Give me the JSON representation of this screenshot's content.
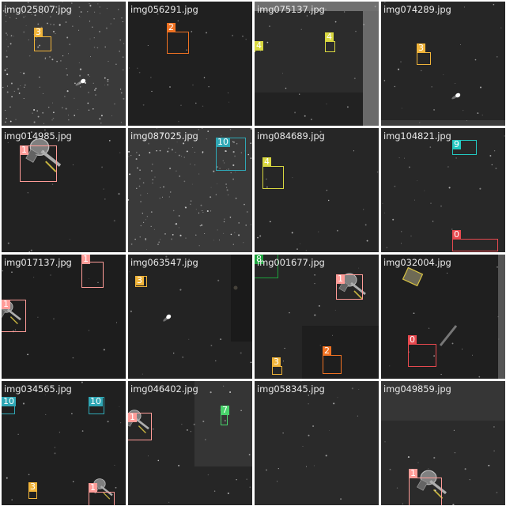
{
  "class_colors": {
    "0": "#e8494f",
    "1": "#ff9c98",
    "2": "#f07222",
    "3": "#f0b43a",
    "4": "#d9d840",
    "7": "#48d36b",
    "8": "#1ca33c",
    "9": "#23c9c2",
    "10": "#2fa7b5"
  },
  "tiles": [
    {
      "filename": "img025807.jpg",
      "boxes": [
        {
          "cls": "3"
        }
      ]
    },
    {
      "filename": "img056291.jpg",
      "boxes": [
        {
          "cls": "2"
        }
      ]
    },
    {
      "filename": "img075137.jpg",
      "boxes": [
        {
          "cls": "4"
        },
        {
          "cls": "4"
        }
      ]
    },
    {
      "filename": "img074289.jpg",
      "boxes": [
        {
          "cls": "3"
        }
      ]
    },
    {
      "filename": "img014985.jpg",
      "boxes": [
        {
          "cls": "1"
        }
      ]
    },
    {
      "filename": "img087025.jpg",
      "boxes": [
        {
          "cls": "10"
        }
      ]
    },
    {
      "filename": "img084689.jpg",
      "boxes": [
        {
          "cls": "4"
        }
      ]
    },
    {
      "filename": "img104821.jpg",
      "boxes": [
        {
          "cls": "9"
        },
        {
          "cls": "0"
        }
      ]
    },
    {
      "filename": "img017137.jpg",
      "boxes": [
        {
          "cls": "1"
        },
        {
          "cls": "1"
        }
      ]
    },
    {
      "filename": "img063547.jpg",
      "boxes": [
        {
          "cls": "3"
        }
      ]
    },
    {
      "filename": "img001677.jpg",
      "boxes": [
        {
          "cls": "8"
        },
        {
          "cls": "1"
        },
        {
          "cls": "2"
        },
        {
          "cls": "3"
        }
      ]
    },
    {
      "filename": "img032004.jpg",
      "boxes": [
        {
          "cls": "0"
        }
      ]
    },
    {
      "filename": "img034565.jpg",
      "boxes": [
        {
          "cls": "10"
        },
        {
          "cls": "10"
        },
        {
          "cls": "3"
        },
        {
          "cls": "1"
        }
      ]
    },
    {
      "filename": "img046402.jpg",
      "boxes": [
        {
          "cls": "1"
        },
        {
          "cls": "7"
        }
      ]
    },
    {
      "filename": "img058345.jpg",
      "boxes": []
    },
    {
      "filename": "img049859.jpg",
      "boxes": [
        {
          "cls": "1"
        }
      ]
    }
  ]
}
